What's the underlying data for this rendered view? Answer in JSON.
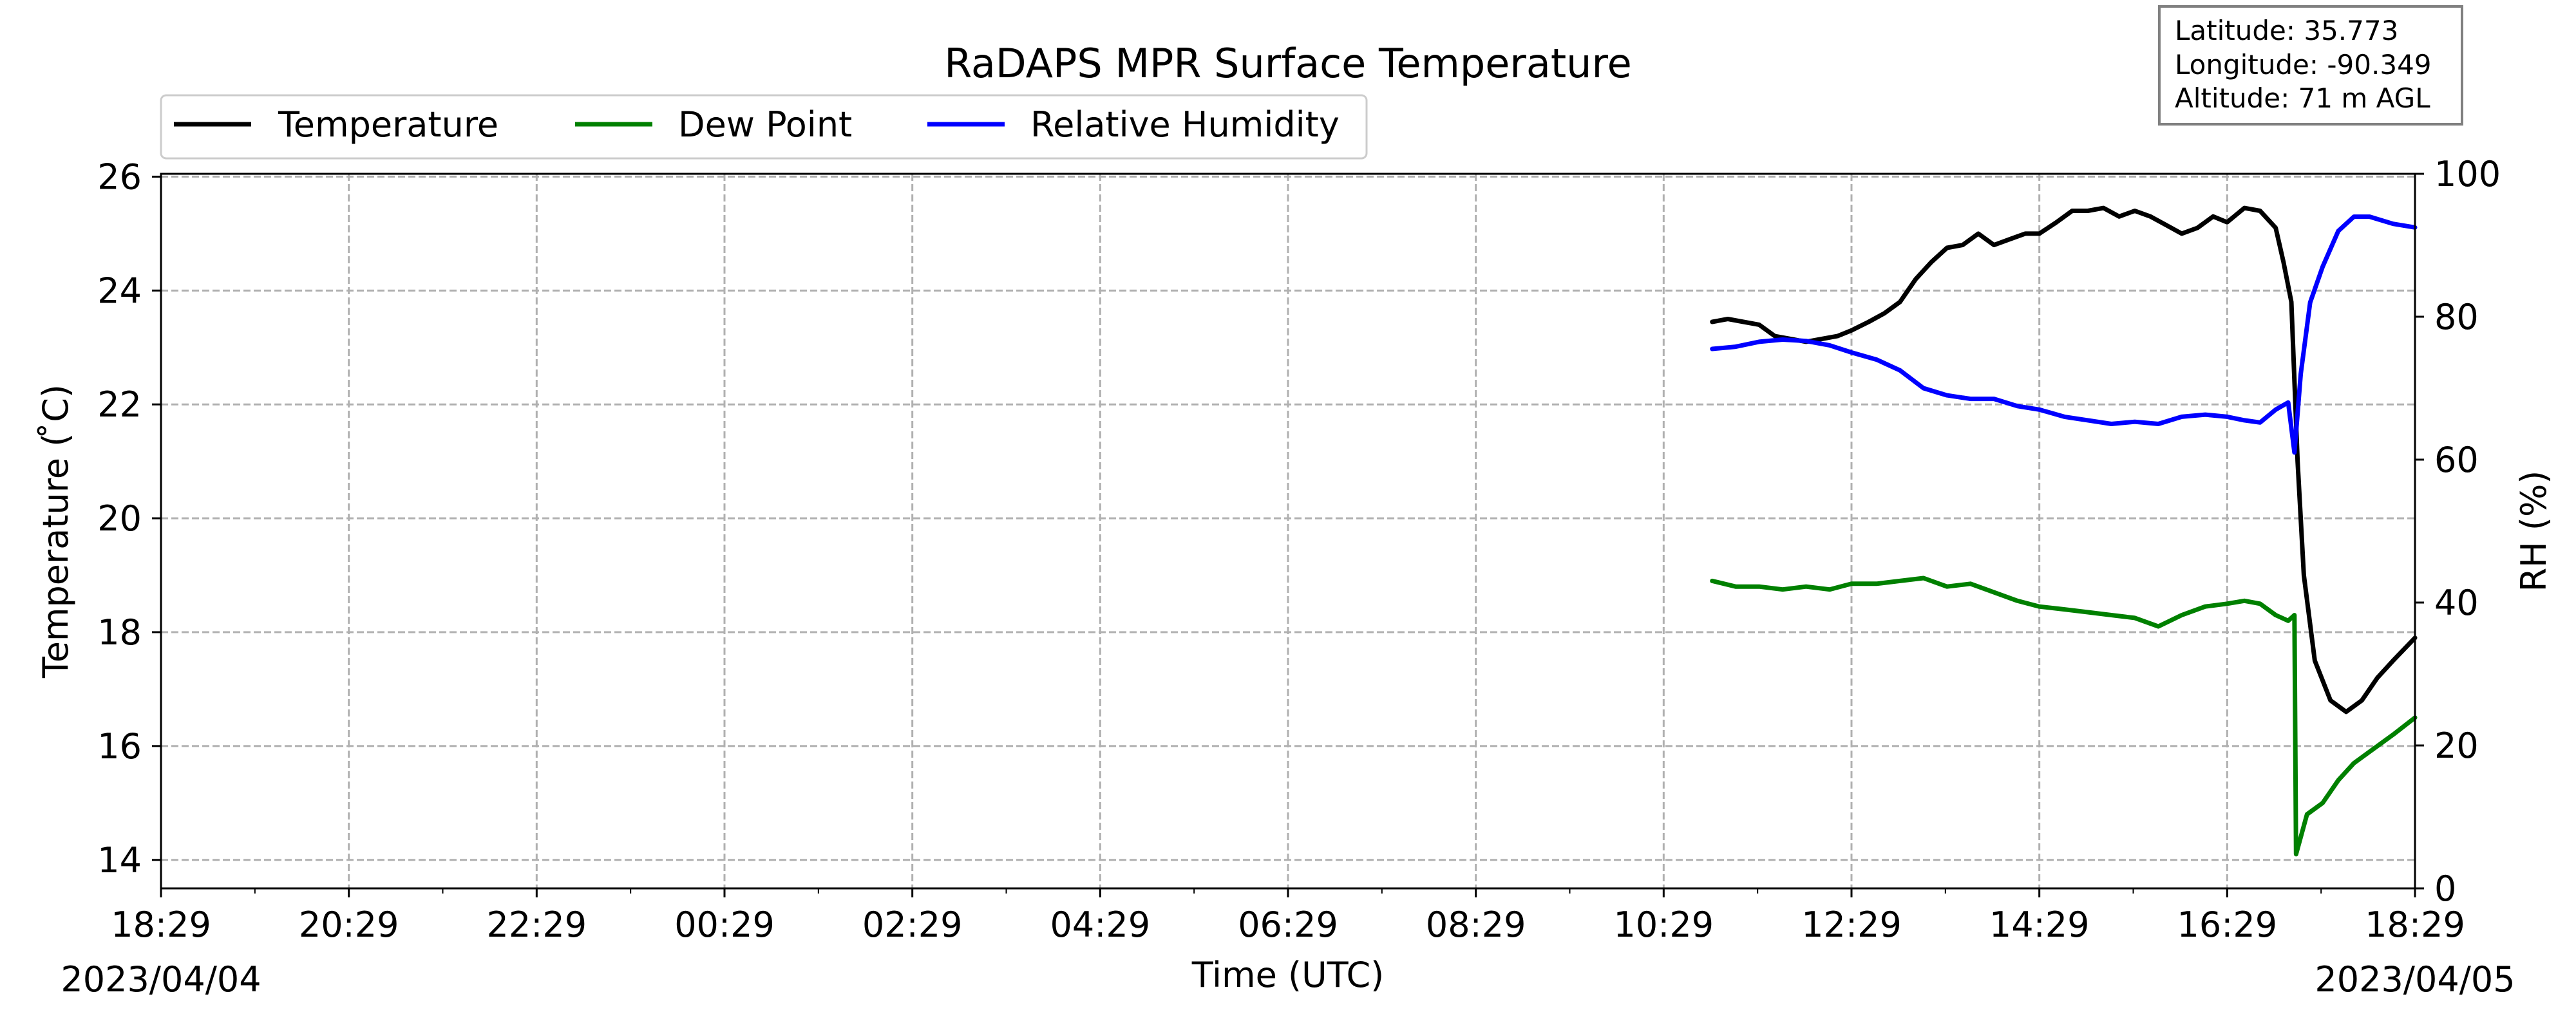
{
  "chart_data": {
    "type": "line",
    "title": "RaDAPS MPR Surface Temperature",
    "xlabel": "Time (UTC)",
    "ylabel_left": "Temperature ( ̊C)",
    "ylabel_right": "RH (%)",
    "x_ticks": [
      "18:29",
      "20:29",
      "22:29",
      "00:29",
      "02:29",
      "04:29",
      "06:29",
      "08:29",
      "10:29",
      "12:29",
      "14:29",
      "16:29",
      "18:29"
    ],
    "x_range": [
      "2023-04-04 18:29",
      "2023-04-05 18:29"
    ],
    "start_date_label": "2023/04/04",
    "end_date_label": "2023/04/05",
    "y_left_range": [
      13.5,
      26.05
    ],
    "y_left_ticks": [
      "14",
      "16",
      "18",
      "20",
      "22",
      "24",
      "26"
    ],
    "y_right_range": [
      0,
      100
    ],
    "y_right_ticks": [
      "0",
      "20",
      "40",
      "60",
      "80",
      "100"
    ],
    "grid": true,
    "legend_position": "top-left",
    "legend": [
      {
        "label": "Temperature",
        "color": "#000000"
      },
      {
        "label": "Dew Point",
        "color": "#008000"
      },
      {
        "label": "Relative Humidity",
        "color": "#0000ff"
      }
    ],
    "info_box": [
      "Latitude: 35.773",
      "Longitude: -90.349",
      "Altitude: 71 m AGL"
    ],
    "series": [
      {
        "name": "Temperature",
        "axis": "left",
        "color": "#000000",
        "points": [
          [
            "2023-04-05 11:00",
            23.45
          ],
          [
            "2023-04-05 11:10",
            23.5
          ],
          [
            "2023-04-05 11:20",
            23.45
          ],
          [
            "2023-04-05 11:30",
            23.4
          ],
          [
            "2023-04-05 11:40",
            23.2
          ],
          [
            "2023-04-05 11:50",
            23.15
          ],
          [
            "2023-04-05 12:00",
            23.1
          ],
          [
            "2023-04-05 12:10",
            23.15
          ],
          [
            "2023-04-05 12:20",
            23.2
          ],
          [
            "2023-04-05 12:29",
            23.3
          ],
          [
            "2023-04-05 12:40",
            23.45
          ],
          [
            "2023-04-05 12:50",
            23.6
          ],
          [
            "2023-04-05 13:00",
            23.8
          ],
          [
            "2023-04-05 13:10",
            24.2
          ],
          [
            "2023-04-05 13:20",
            24.5
          ],
          [
            "2023-04-05 13:30",
            24.75
          ],
          [
            "2023-04-05 13:40",
            24.8
          ],
          [
            "2023-04-05 13:50",
            25.0
          ],
          [
            "2023-04-05 14:00",
            24.8
          ],
          [
            "2023-04-05 14:10",
            24.9
          ],
          [
            "2023-04-05 14:20",
            25.0
          ],
          [
            "2023-04-05 14:29",
            25.0
          ],
          [
            "2023-04-05 14:40",
            25.2
          ],
          [
            "2023-04-05 14:50",
            25.4
          ],
          [
            "2023-04-05 15:00",
            25.4
          ],
          [
            "2023-04-05 15:10",
            25.45
          ],
          [
            "2023-04-05 15:20",
            25.3
          ],
          [
            "2023-04-05 15:30",
            25.4
          ],
          [
            "2023-04-05 15:40",
            25.3
          ],
          [
            "2023-04-05 15:50",
            25.15
          ],
          [
            "2023-04-05 16:00",
            25.0
          ],
          [
            "2023-04-05 16:10",
            25.1
          ],
          [
            "2023-04-05 16:20",
            25.3
          ],
          [
            "2023-04-05 16:29",
            25.2
          ],
          [
            "2023-04-05 16:40",
            25.45
          ],
          [
            "2023-04-05 16:50",
            25.4
          ],
          [
            "2023-04-05 17:00",
            25.1
          ],
          [
            "2023-04-05 17:05",
            24.5
          ],
          [
            "2023-04-05 17:10",
            23.8
          ],
          [
            "2023-04-05 17:14",
            21.0
          ],
          [
            "2023-04-05 17:18",
            19.0
          ],
          [
            "2023-04-05 17:25",
            17.5
          ],
          [
            "2023-04-05 17:35",
            16.8
          ],
          [
            "2023-04-05 17:45",
            16.6
          ],
          [
            "2023-04-05 17:55",
            16.8
          ],
          [
            "2023-04-05 18:05",
            17.2
          ],
          [
            "2023-04-05 18:15",
            17.5
          ],
          [
            "2023-04-05 18:29",
            17.9
          ]
        ]
      },
      {
        "name": "Dew Point",
        "axis": "left",
        "color": "#008000",
        "points": [
          [
            "2023-04-05 11:00",
            18.9
          ],
          [
            "2023-04-05 11:15",
            18.8
          ],
          [
            "2023-04-05 11:30",
            18.8
          ],
          [
            "2023-04-05 11:45",
            18.75
          ],
          [
            "2023-04-05 12:00",
            18.8
          ],
          [
            "2023-04-05 12:15",
            18.75
          ],
          [
            "2023-04-05 12:29",
            18.85
          ],
          [
            "2023-04-05 12:45",
            18.85
          ],
          [
            "2023-04-05 13:00",
            18.9
          ],
          [
            "2023-04-05 13:15",
            18.95
          ],
          [
            "2023-04-05 13:30",
            18.8
          ],
          [
            "2023-04-05 13:45",
            18.85
          ],
          [
            "2023-04-05 14:00",
            18.7
          ],
          [
            "2023-04-05 14:15",
            18.55
          ],
          [
            "2023-04-05 14:29",
            18.45
          ],
          [
            "2023-04-05 14:45",
            18.4
          ],
          [
            "2023-04-05 15:00",
            18.35
          ],
          [
            "2023-04-05 15:15",
            18.3
          ],
          [
            "2023-04-05 15:30",
            18.25
          ],
          [
            "2023-04-05 15:45",
            18.1
          ],
          [
            "2023-04-05 16:00",
            18.3
          ],
          [
            "2023-04-05 16:15",
            18.45
          ],
          [
            "2023-04-05 16:29",
            18.5
          ],
          [
            "2023-04-05 16:40",
            18.55
          ],
          [
            "2023-04-05 16:50",
            18.5
          ],
          [
            "2023-04-05 17:00",
            18.3
          ],
          [
            "2023-04-05 17:08",
            18.2
          ],
          [
            "2023-04-05 17:12",
            18.3
          ],
          [
            "2023-04-05 17:13",
            14.1
          ],
          [
            "2023-04-05 17:20",
            14.8
          ],
          [
            "2023-04-05 17:30",
            15.0
          ],
          [
            "2023-04-05 17:40",
            15.4
          ],
          [
            "2023-04-05 17:50",
            15.7
          ],
          [
            "2023-04-05 18:00",
            15.9
          ],
          [
            "2023-04-05 18:15",
            16.2
          ],
          [
            "2023-04-05 18:29",
            16.5
          ]
        ]
      },
      {
        "name": "Relative Humidity",
        "axis": "right",
        "color": "#0000ff",
        "points": [
          [
            "2023-04-05 11:00",
            75.5
          ],
          [
            "2023-04-05 11:15",
            75.8
          ],
          [
            "2023-04-05 11:30",
            76.5
          ],
          [
            "2023-04-05 11:45",
            76.8
          ],
          [
            "2023-04-05 12:00",
            76.6
          ],
          [
            "2023-04-05 12:15",
            76.0
          ],
          [
            "2023-04-05 12:29",
            75.0
          ],
          [
            "2023-04-05 12:45",
            74.0
          ],
          [
            "2023-04-05 13:00",
            72.5
          ],
          [
            "2023-04-05 13:15",
            70.0
          ],
          [
            "2023-04-05 13:30",
            69.0
          ],
          [
            "2023-04-05 13:45",
            68.5
          ],
          [
            "2023-04-05 14:00",
            68.5
          ],
          [
            "2023-04-05 14:15",
            67.5
          ],
          [
            "2023-04-05 14:29",
            67.0
          ],
          [
            "2023-04-05 14:45",
            66.0
          ],
          [
            "2023-04-05 15:00",
            65.5
          ],
          [
            "2023-04-05 15:15",
            65.0
          ],
          [
            "2023-04-05 15:30",
            65.3
          ],
          [
            "2023-04-05 15:45",
            65.0
          ],
          [
            "2023-04-05 16:00",
            66.0
          ],
          [
            "2023-04-05 16:15",
            66.3
          ],
          [
            "2023-04-05 16:29",
            66.0
          ],
          [
            "2023-04-05 16:40",
            65.5
          ],
          [
            "2023-04-05 16:50",
            65.2
          ],
          [
            "2023-04-05 17:00",
            67.0
          ],
          [
            "2023-04-05 17:08",
            68.0
          ],
          [
            "2023-04-05 17:12",
            61.0
          ],
          [
            "2023-04-05 17:16",
            72.0
          ],
          [
            "2023-04-05 17:22",
            82.0
          ],
          [
            "2023-04-05 17:30",
            87.0
          ],
          [
            "2023-04-05 17:40",
            92.0
          ],
          [
            "2023-04-05 17:50",
            94.0
          ],
          [
            "2023-04-05 18:00",
            94.0
          ],
          [
            "2023-04-05 18:15",
            93.0
          ],
          [
            "2023-04-05 18:29",
            92.5
          ]
        ]
      }
    ]
  }
}
